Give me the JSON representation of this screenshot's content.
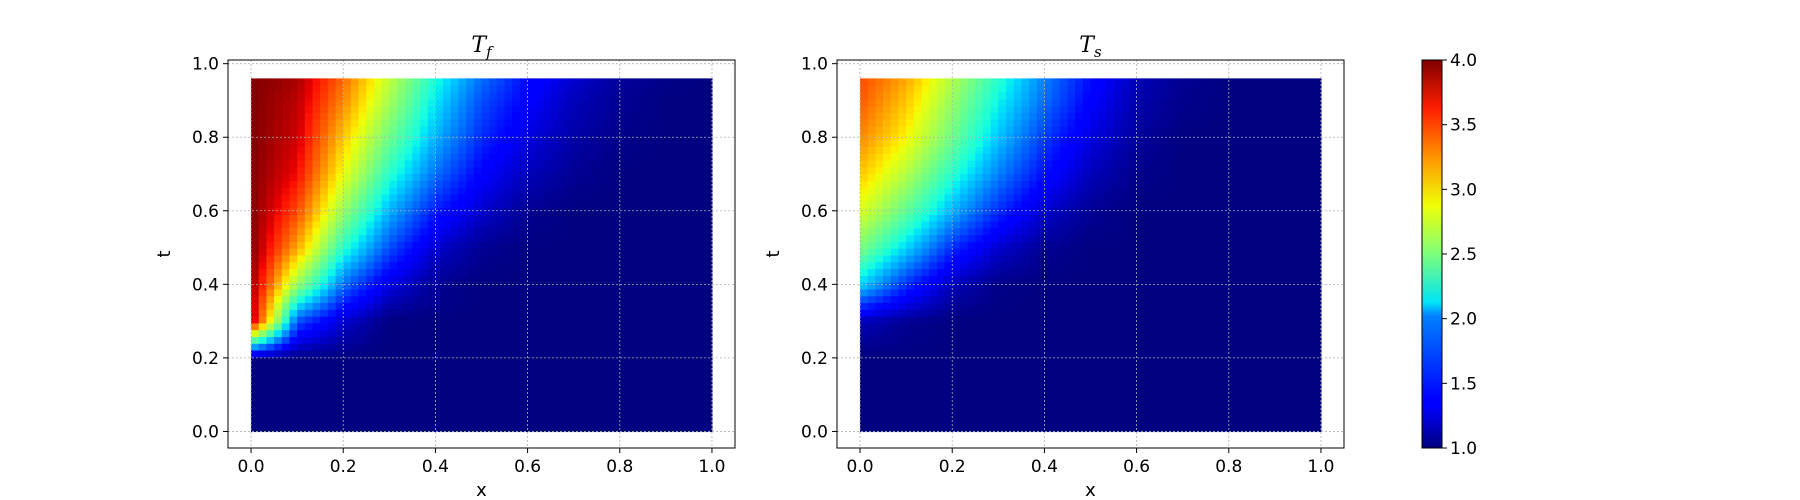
{
  "chart_data": [
    {
      "type": "heatmap",
      "title": "T",
      "title_subscript": "f",
      "xlabel": "x",
      "ylabel": "t",
      "xlim": [
        -0.05,
        1.05
      ],
      "ylim": [
        -0.045,
        1.01
      ],
      "xticks": [
        "0.0",
        "0.2",
        "0.4",
        "0.6",
        "0.8",
        "1.0"
      ],
      "yticks": [
        "0.0",
        "0.2",
        "0.4",
        "0.6",
        "0.8",
        "1.0"
      ],
      "grid": true,
      "field": "fluid",
      "data_extent": {
        "x": [
          0.0,
          1.0
        ],
        "t": [
          0.0,
          0.96
        ]
      },
      "values": {
        "x": [
          0.0,
          0.1,
          0.2,
          0.3,
          0.4,
          0.5,
          0.6,
          0.7,
          0.8,
          0.9,
          1.0
        ],
        "t": [
          0.0,
          0.2,
          0.3,
          0.4,
          0.5,
          0.6,
          0.7,
          0.8,
          0.9,
          0.96
        ],
        "z": [
          [
            1.0,
            1.0,
            1.0,
            1.0,
            1.0,
            1.0,
            1.0,
            1.0,
            1.0,
            1.0,
            1.0
          ],
          [
            1.0,
            1.0,
            1.0,
            1.0,
            1.0,
            1.0,
            1.0,
            1.0,
            1.0,
            1.0,
            1.0
          ],
          [
            3.9,
            1.6,
            1.2,
            1.0,
            1.0,
            1.0,
            1.0,
            1.0,
            1.0,
            1.0,
            1.0
          ],
          [
            3.95,
            2.6,
            1.7,
            1.25,
            1.05,
            1.0,
            1.0,
            1.0,
            1.0,
            1.0,
            1.0
          ],
          [
            4.0,
            3.2,
            2.2,
            1.6,
            1.2,
            1.05,
            1.0,
            1.0,
            1.0,
            1.0,
            1.0
          ],
          [
            4.0,
            3.5,
            2.6,
            1.9,
            1.45,
            1.2,
            1.05,
            1.0,
            1.0,
            1.0,
            1.0
          ],
          [
            4.0,
            3.7,
            2.9,
            2.2,
            1.7,
            1.35,
            1.15,
            1.05,
            1.0,
            1.0,
            1.0
          ],
          [
            4.0,
            3.8,
            3.1,
            2.45,
            1.9,
            1.5,
            1.25,
            1.1,
            1.03,
            1.0,
            1.0
          ],
          [
            4.0,
            3.85,
            3.3,
            2.65,
            2.05,
            1.6,
            1.35,
            1.15,
            1.05,
            1.0,
            1.0
          ],
          [
            4.0,
            3.9,
            3.4,
            2.75,
            2.15,
            1.7,
            1.4,
            1.2,
            1.07,
            1.02,
            1.0
          ]
        ]
      }
    },
    {
      "type": "heatmap",
      "title": "T",
      "title_subscript": "s",
      "xlabel": "x",
      "ylabel": "t",
      "xlim": [
        -0.05,
        1.05
      ],
      "ylim": [
        -0.045,
        1.01
      ],
      "xticks": [
        "0.0",
        "0.2",
        "0.4",
        "0.6",
        "0.8",
        "1.0"
      ],
      "yticks": [
        "0.0",
        "0.2",
        "0.4",
        "0.6",
        "0.8",
        "1.0"
      ],
      "grid": true,
      "field": "solid",
      "data_extent": {
        "x": [
          0.0,
          1.0
        ],
        "t": [
          0.0,
          0.96
        ]
      },
      "values": {
        "x": [
          0.0,
          0.1,
          0.2,
          0.3,
          0.4,
          0.5,
          0.6,
          0.7,
          0.8,
          0.9,
          1.0
        ],
        "t": [
          0.0,
          0.2,
          0.3,
          0.4,
          0.5,
          0.6,
          0.7,
          0.8,
          0.9,
          0.96
        ],
        "z": [
          [
            1.0,
            1.0,
            1.0,
            1.0,
            1.0,
            1.0,
            1.0,
            1.0,
            1.0,
            1.0,
            1.0
          ],
          [
            1.0,
            1.0,
            1.0,
            1.0,
            1.0,
            1.0,
            1.0,
            1.0,
            1.0,
            1.0,
            1.0
          ],
          [
            1.15,
            1.05,
            1.0,
            1.0,
            1.0,
            1.0,
            1.0,
            1.0,
            1.0,
            1.0,
            1.0
          ],
          [
            2.0,
            1.5,
            1.15,
            1.02,
            1.0,
            1.0,
            1.0,
            1.0,
            1.0,
            1.0,
            1.0
          ],
          [
            2.5,
            2.0,
            1.5,
            1.2,
            1.05,
            1.0,
            1.0,
            1.0,
            1.0,
            1.0,
            1.0
          ],
          [
            2.85,
            2.4,
            1.9,
            1.5,
            1.2,
            1.05,
            1.0,
            1.0,
            1.0,
            1.0,
            1.0
          ],
          [
            3.1,
            2.7,
            2.2,
            1.75,
            1.4,
            1.15,
            1.03,
            1.0,
            1.0,
            1.0,
            1.0
          ],
          [
            3.3,
            2.95,
            2.45,
            1.95,
            1.55,
            1.25,
            1.08,
            1.0,
            1.0,
            1.0,
            1.0
          ],
          [
            3.45,
            3.1,
            2.6,
            2.1,
            1.7,
            1.35,
            1.12,
            1.03,
            1.0,
            1.0,
            1.0
          ],
          [
            3.5,
            3.2,
            2.7,
            2.2,
            1.75,
            1.4,
            1.15,
            1.05,
            1.0,
            1.0,
            1.0
          ]
        ]
      }
    }
  ],
  "colorbar": {
    "colormap": "jet",
    "min": 1.0,
    "max": 4.0,
    "ticks": [
      "1.0",
      "1.5",
      "2.0",
      "2.5",
      "3.0",
      "3.5",
      "4.0"
    ]
  }
}
